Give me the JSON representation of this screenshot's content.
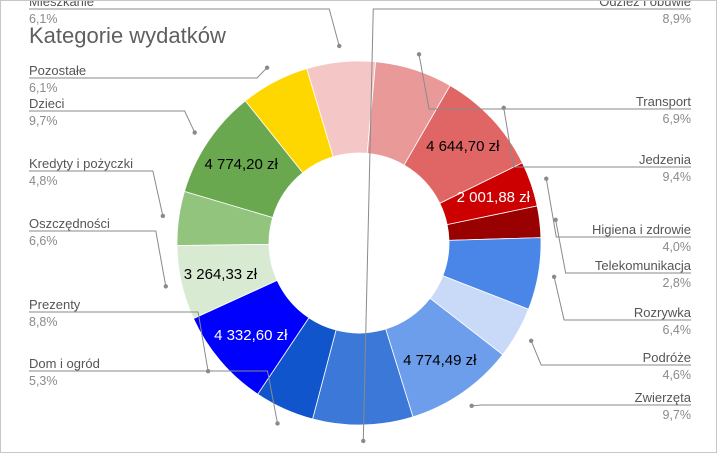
{
  "chart_data": {
    "type": "pie",
    "donut": true,
    "title": "Kategorie wydatków",
    "start_angle_deg": -16.7,
    "categories": [
      {
        "name": "Mieszkanie",
        "percent_label": "6,1%",
        "value": 6.1,
        "color": "#f4c7c6"
      },
      {
        "name": "Transport",
        "percent_label": "6,9%",
        "value": 6.9,
        "color": "#ea9999"
      },
      {
        "name": "Jedzenia",
        "percent_label": "9,4%",
        "value": 9.4,
        "color": "#e06666",
        "data_label": "4 644,70 zł",
        "data_label_color": "#000000"
      },
      {
        "name": "Higiena i zdrowie",
        "percent_label": "4,0%",
        "value": 4.0,
        "color": "#cc0000",
        "data_label": "2 001,88 zł",
        "data_label_color": "#ffffff"
      },
      {
        "name": "Telekomunikacja",
        "percent_label": "2,8%",
        "value": 2.8,
        "color": "#990000"
      },
      {
        "name": "Rozrywka",
        "percent_label": "6,4%",
        "value": 6.4,
        "color": "#4a86e8"
      },
      {
        "name": "Podróże",
        "percent_label": "4,6%",
        "value": 4.6,
        "color": "#c9daf8"
      },
      {
        "name": "Zwierzęta",
        "percent_label": "9,7%",
        "value": 9.7,
        "color": "#6d9eeb",
        "data_label": "4 774,49 zł",
        "data_label_color": "#000000"
      },
      {
        "name": "Odzież i obuwie",
        "percent_label": "8,9%",
        "value": 8.9,
        "color": "#3c78d8"
      },
      {
        "name": "Dom i ogród",
        "percent_label": "5,3%",
        "value": 5.3,
        "color": "#1155cc"
      },
      {
        "name": "Prezenty",
        "percent_label": "8,8%",
        "value": 8.8,
        "color": "#0000ff",
        "data_label": "4 332,60 zł",
        "data_label_color": "#ffffff"
      },
      {
        "name": "Oszczędności",
        "percent_label": "6,6%",
        "value": 6.6,
        "color": "#d9ead3",
        "data_label": "3 264,33 zł",
        "data_label_color": "#000000"
      },
      {
        "name": "Kredyty i pożyczki",
        "percent_label": "4,8%",
        "value": 4.8,
        "color": "#93c47d"
      },
      {
        "name": "Dzieci",
        "percent_label": "9,7%",
        "value": 9.7,
        "color": "#6aa84f",
        "data_label": "4 774,20 zł",
        "data_label_color": "#000000"
      },
      {
        "name": "Pozostałe",
        "percent_label": "6,1%",
        "value": 6.1,
        "color": "#ffd700"
      }
    ],
    "legend": "outside-labels-with-leader-lines"
  }
}
